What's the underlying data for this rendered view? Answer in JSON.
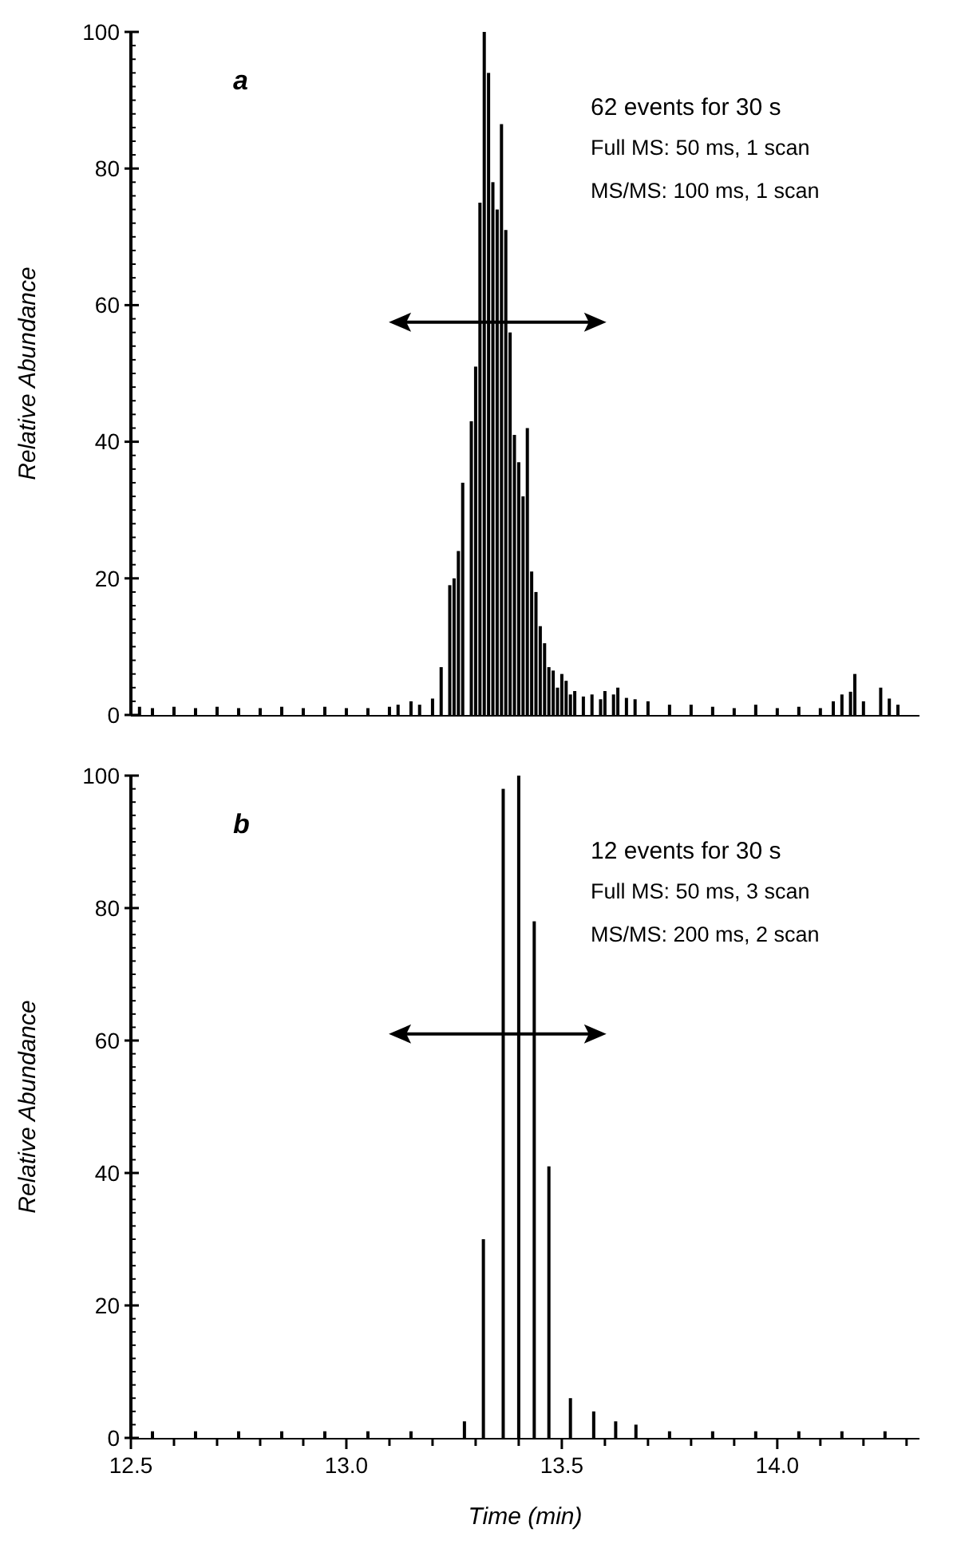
{
  "chart_data": [
    {
      "type": "bar",
      "ylabel": "Relative Abundance",
      "annotations": [
        "a",
        "62 events for 30 s",
        "Full MS: 50 ms, 1 scan",
        "MS/MS: 100 ms, 1 scan"
      ],
      "x": [
        12.52,
        12.55,
        12.6,
        12.65,
        12.7,
        12.75,
        12.8,
        12.85,
        12.9,
        12.95,
        13.0,
        13.05,
        13.1,
        13.12,
        13.15,
        13.17,
        13.2,
        13.22,
        13.24,
        13.25,
        13.26,
        13.27,
        13.29,
        13.3,
        13.31,
        13.32,
        13.33,
        13.34,
        13.35,
        13.36,
        13.37,
        13.38,
        13.39,
        13.4,
        13.41,
        13.42,
        13.43,
        13.44,
        13.45,
        13.46,
        13.47,
        13.48,
        13.49,
        13.5,
        13.51,
        13.52,
        13.53,
        13.55,
        13.57,
        13.59,
        13.6,
        13.62,
        13.63,
        13.65,
        13.67,
        13.7,
        13.75,
        13.8,
        13.85,
        13.9,
        13.95,
        14.0,
        14.05,
        14.1,
        14.13,
        14.15,
        14.17,
        14.18,
        14.2,
        14.24,
        14.26,
        14.28
      ],
      "values": [
        1.2,
        1,
        1.2,
        1,
        1.2,
        1,
        1,
        1.2,
        1,
        1.2,
        1,
        1,
        1.2,
        1.5,
        2,
        1.5,
        2.4,
        7,
        19,
        20,
        24,
        34,
        43,
        51,
        75,
        100,
        94,
        78,
        74,
        86.5,
        71,
        56,
        41,
        37,
        32,
        42,
        21,
        18,
        13,
        10.5,
        7,
        6.5,
        4,
        6,
        5,
        3,
        3.5,
        2.7,
        3,
        2.3,
        3.5,
        3,
        4,
        2.5,
        2.3,
        2,
        1.5,
        1.5,
        1.2,
        1,
        1.5,
        1,
        1.2,
        1,
        2,
        3,
        3.4,
        6,
        2,
        4,
        2.4,
        1.5
      ],
      "color": "#000000",
      "xlim": [
        12.5,
        14.33
      ],
      "ylim": [
        0,
        100
      ],
      "yticks": [
        0,
        20,
        40,
        60,
        80,
        100
      ],
      "tick_labels": "y"
    },
    {
      "type": "bar",
      "xlabel": "Time (min)",
      "ylabel": "Relative Abundance",
      "annotations": [
        "b",
        "12 events for 30 s",
        "Full MS: 50 ms, 3 scan",
        "MS/MS: 200 ms, 2 scan"
      ],
      "x": [
        12.55,
        12.65,
        12.75,
        12.85,
        12.95,
        13.05,
        13.15,
        13.274,
        13.318,
        13.364,
        13.4,
        13.436,
        13.47,
        13.52,
        13.574,
        13.625,
        13.672,
        13.75,
        13.85,
        13.95,
        14.05,
        14.15,
        14.25
      ],
      "values": [
        1,
        1,
        1,
        1,
        1,
        1,
        1,
        2.5,
        30,
        98,
        100,
        78,
        41,
        6,
        4,
        2.5,
        2,
        1,
        1,
        1,
        1,
        1,
        1
      ],
      "color": "#000000",
      "xlim": [
        12.5,
        14.33
      ],
      "xticks": [
        12.5,
        {
          "value": 12.6,
          "label": null
        },
        {
          "value": 12.7,
          "label": null
        },
        {
          "value": 12.8,
          "label": null
        },
        {
          "value": 12.9,
          "label": null
        },
        "13.0",
        {
          "value": 13.1,
          "label": null
        },
        {
          "value": 13.2,
          "label": null
        },
        {
          "value": 13.3,
          "label": null
        },
        {
          "value": 13.4,
          "label": null
        },
        13.5,
        {
          "value": 13.6,
          "label": null
        },
        {
          "value": 13.7,
          "label": null
        },
        {
          "value": 13.8,
          "label": null
        },
        {
          "value": 13.9,
          "label": null
        },
        {
          "value": 14.0,
          "label": "14.0"
        },
        {
          "value": 14.1,
          "label": null
        },
        {
          "value": 14.2,
          "label": null
        },
        {
          "value": 14.3,
          "label": null
        }
      ],
      "ylim": [
        0,
        100
      ],
      "yticks": [
        0,
        20,
        40,
        60,
        80,
        100
      ]
    }
  ]
}
